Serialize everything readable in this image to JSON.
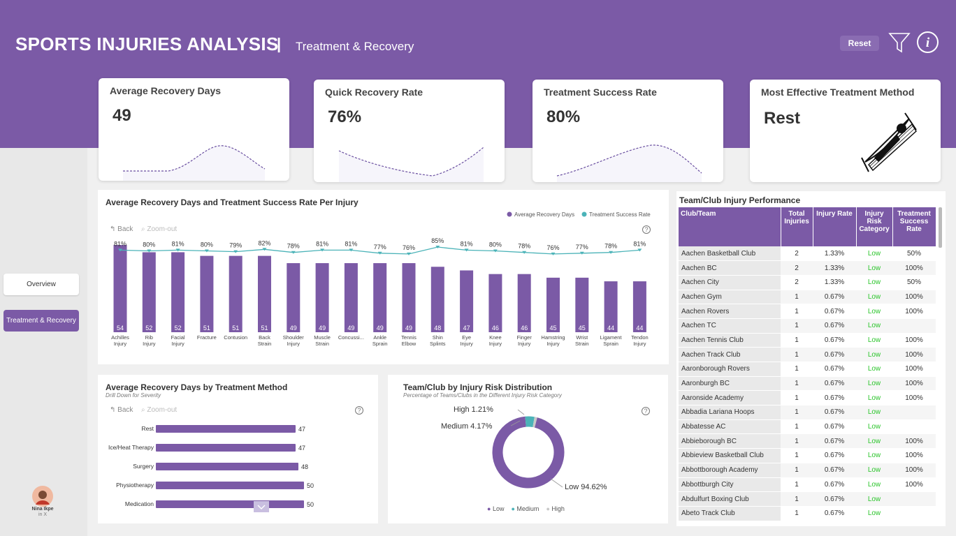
{
  "header": {
    "title": "SPORTS INJURIES ANALYSIS",
    "separator": "|",
    "subtitle": "Treatment & Recovery",
    "reset_label": "Reset",
    "colors": {
      "brand": "#7b5aa6",
      "accent": "#4bb3b8"
    }
  },
  "kpis": [
    {
      "label": "Average Recovery Days",
      "value": "49"
    },
    {
      "label": "Quick Recovery Rate",
      "value": "76%"
    },
    {
      "label": "Treatment Success Rate",
      "value": "80%"
    },
    {
      "label": "Most Effective Treatment Method",
      "value": "Rest",
      "icon": "hammock-icon"
    }
  ],
  "nav": {
    "overview": "Overview",
    "treatment": "Treatment & Recovery"
  },
  "author": {
    "name": "Nina Ikpe",
    "social": "in  X"
  },
  "injury_chart": {
    "title": "Average Recovery Days and Treatment Success Rate Per Injury",
    "back": "Back",
    "zoom_out": "Zoom-out",
    "legend_days": "Average Recovery Days",
    "legend_rate": "Treatment Success Rate"
  },
  "method_chart": {
    "title": "Average Recovery Days by Treatment Method",
    "subtitle": "Drill Down for Severity",
    "back": "Back",
    "zoom_out": "Zoom-out"
  },
  "donut_chart": {
    "title": "Team/Club by Injury Risk Distribution",
    "subtitle": "Percentage of Teams/Clubs in the Different Injury Risk Category",
    "label_high": "High 1.21%",
    "label_medium": "Medium 4.17%",
    "label_low": "Low 94.62%",
    "legend_low": "Low",
    "legend_medium": "Medium",
    "legend_high": "High"
  },
  "chart_data": [
    {
      "type": "bar",
      "title": "Average Recovery Days and Treatment Success Rate Per Injury",
      "categories": [
        "Achilles Injury",
        "Rib Injury",
        "Facial Injury",
        "Fracture",
        "Contusion",
        "Back Strain",
        "Shoulder Injury",
        "Muscle Strain",
        "Concussi...",
        "Ankle Sprain",
        "Tennis Elbow",
        "Shin Splints",
        "Eye Injury",
        "Knee Injury",
        "Finger Injury",
        "Hamstring Injury",
        "Wrist Strain",
        "Ligament Sprain",
        "Tendon Injury"
      ],
      "series": [
        {
          "name": "Average Recovery Days",
          "type": "bar",
          "values": [
            54,
            52,
            52,
            51,
            51,
            51,
            49,
            49,
            49,
            49,
            49,
            48,
            47,
            46,
            46,
            45,
            45,
            44,
            44
          ]
        },
        {
          "name": "Treatment Success Rate",
          "type": "line",
          "values": [
            81,
            80,
            81,
            80,
            79,
            82,
            78,
            81,
            81,
            77,
            76,
            85,
            81,
            80,
            78,
            76,
            77,
            78,
            81
          ],
          "unit": "%"
        }
      ],
      "legend": "top-right"
    },
    {
      "type": "bar",
      "orientation": "horizontal",
      "title": "Average Recovery Days by Treatment Method",
      "categories": [
        "Rest",
        "Ice/Heat Therapy",
        "Surgery",
        "Physiotherapy",
        "Medication"
      ],
      "values": [
        47,
        47,
        48,
        50,
        50
      ]
    },
    {
      "type": "pie",
      "donut": true,
      "title": "Team/Club by Injury Risk Distribution",
      "categories": [
        "Low",
        "Medium",
        "High"
      ],
      "values": [
        94.62,
        4.17,
        1.21
      ],
      "colors": [
        "#7b5aa6",
        "#4bb3b8",
        "#c8c8c8"
      ],
      "legend": "bottom"
    }
  ],
  "table": {
    "title": "Team/Club Injury Performance",
    "headers": [
      "Club/Team",
      "Total Injuries",
      "Injury Rate",
      "Injury Risk Category",
      "Treatment Success Rate"
    ],
    "rows": [
      [
        "Aachen Basketball Club",
        "2",
        "1.33%",
        "Low",
        "50%"
      ],
      [
        "Aachen BC",
        "2",
        "1.33%",
        "Low",
        "100%"
      ],
      [
        "Aachen City",
        "2",
        "1.33%",
        "Low",
        "50%"
      ],
      [
        "Aachen Gym",
        "1",
        "0.67%",
        "Low",
        "100%"
      ],
      [
        "Aachen Rovers",
        "1",
        "0.67%",
        "Low",
        "100%"
      ],
      [
        "Aachen TC",
        "1",
        "0.67%",
        "Low",
        ""
      ],
      [
        "Aachen Tennis Club",
        "1",
        "0.67%",
        "Low",
        "100%"
      ],
      [
        "Aachen Track Club",
        "1",
        "0.67%",
        "Low",
        "100%"
      ],
      [
        "Aaronborough Rovers",
        "1",
        "0.67%",
        "Low",
        "100%"
      ],
      [
        "Aaronburgh BC",
        "1",
        "0.67%",
        "Low",
        "100%"
      ],
      [
        "Aaronside Academy",
        "1",
        "0.67%",
        "Low",
        "100%"
      ],
      [
        "Abbadia Lariana Hoops",
        "1",
        "0.67%",
        "Low",
        ""
      ],
      [
        "Abbatesse AC",
        "1",
        "0.67%",
        "Low",
        ""
      ],
      [
        "Abbieborough BC",
        "1",
        "0.67%",
        "Low",
        "100%"
      ],
      [
        "Abbieview Basketball Club",
        "1",
        "0.67%",
        "Low",
        "100%"
      ],
      [
        "Abbottborough Academy",
        "1",
        "0.67%",
        "Low",
        "100%"
      ],
      [
        "Abbottburgh City",
        "1",
        "0.67%",
        "Low",
        "100%"
      ],
      [
        "Abdulfurt Boxing Club",
        "1",
        "0.67%",
        "Low",
        ""
      ],
      [
        "Abeto Track Club",
        "1",
        "0.67%",
        "Low",
        ""
      ]
    ]
  }
}
